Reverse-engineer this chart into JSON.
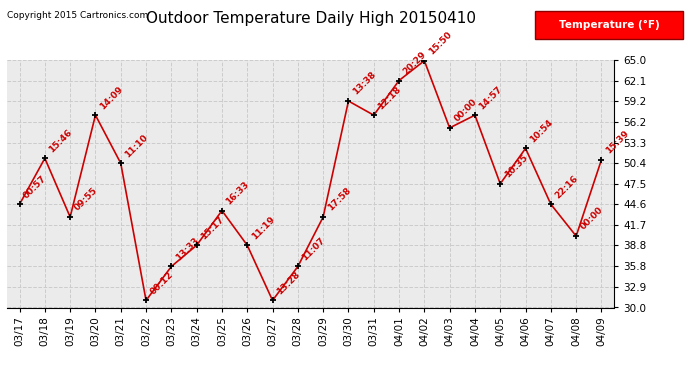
{
  "title": "Outdoor Temperature Daily High 20150410",
  "copyright": "Copyright 2015 Cartronics.com",
  "legend_label": "Temperature (°F)",
  "dates": [
    "03/17",
    "03/18",
    "03/19",
    "03/20",
    "03/21",
    "03/22",
    "03/23",
    "03/24",
    "03/25",
    "03/26",
    "03/27",
    "03/28",
    "03/29",
    "03/30",
    "03/31",
    "04/01",
    "04/02",
    "04/03",
    "04/04",
    "04/05",
    "04/06",
    "04/07",
    "04/08",
    "04/09"
  ],
  "values": [
    44.6,
    51.1,
    42.8,
    57.2,
    50.4,
    31.0,
    35.8,
    38.8,
    43.7,
    38.8,
    31.0,
    35.8,
    42.8,
    59.2,
    57.2,
    62.1,
    64.9,
    55.4,
    57.2,
    47.5,
    52.5,
    44.6,
    40.1,
    50.9
  ],
  "annotations": [
    "00:57",
    "15:46",
    "09:55",
    "14:09",
    "11:10",
    "00:12",
    "13:33",
    "15:17",
    "16:33",
    "11:19",
    "13:28",
    "11:07",
    "17:58",
    "13:38",
    "12:18",
    "20:29",
    "15:50",
    "00:00",
    "14:57",
    "10:35",
    "10:54",
    "22:16",
    "00:00",
    "15:39"
  ],
  "ylim": [
    30.0,
    65.0
  ],
  "yticks": [
    30.0,
    32.9,
    35.8,
    38.8,
    41.7,
    44.6,
    47.5,
    50.4,
    53.3,
    56.2,
    59.2,
    62.1,
    65.0
  ],
  "line_color": "#cc0000",
  "marker_color": "#000000",
  "bg_color": "#ebebeb",
  "grid_color": "#cccccc",
  "title_fontsize": 11,
  "annotation_fontsize": 6.5,
  "axis_fontsize": 7.5,
  "copyright_fontsize": 6.5,
  "legend_fontsize": 7.5
}
